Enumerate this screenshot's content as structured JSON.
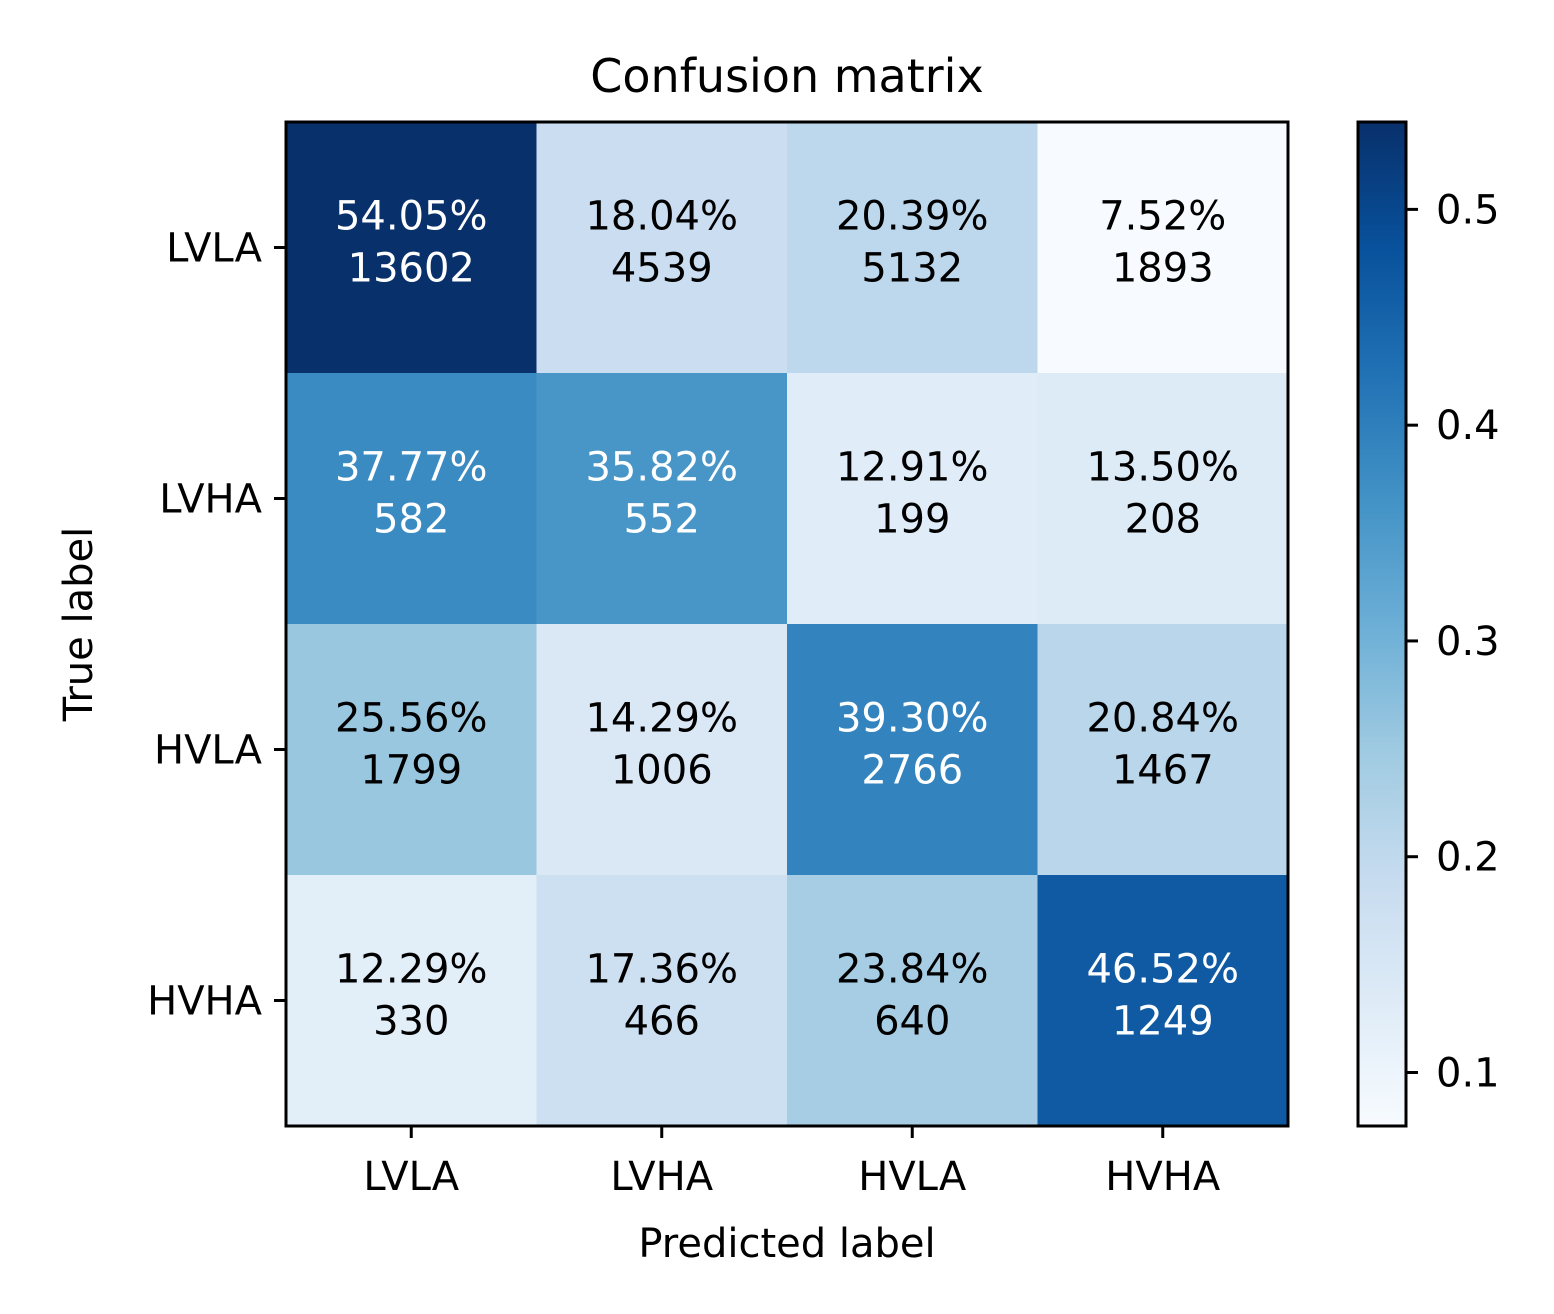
{
  "chart_data": {
    "type": "heatmap",
    "title": "Confusion matrix",
    "xlabel": "Predicted label",
    "ylabel": "True label",
    "x_categories": [
      "LVLA",
      "LVHA",
      "HVLA",
      "HVHA"
    ],
    "y_categories": [
      "LVLA",
      "LVHA",
      "HVLA",
      "HVHA"
    ],
    "percent_labels": [
      [
        "54.05%",
        "18.04%",
        "20.39%",
        "7.52%"
      ],
      [
        "37.77%",
        "35.82%",
        "12.91%",
        "13.50%"
      ],
      [
        "25.56%",
        "14.29%",
        "39.30%",
        "20.84%"
      ],
      [
        "12.29%",
        "17.36%",
        "23.84%",
        "46.52%"
      ]
    ],
    "values": [
      [
        0.5405,
        0.1804,
        0.2039,
        0.0752
      ],
      [
        0.3777,
        0.3582,
        0.1291,
        0.135
      ],
      [
        0.2556,
        0.1429,
        0.393,
        0.2084
      ],
      [
        0.1229,
        0.1736,
        0.2384,
        0.4652
      ]
    ],
    "counts": [
      [
        13602,
        4539,
        5132,
        1893
      ],
      [
        582,
        552,
        199,
        208
      ],
      [
        1799,
        1006,
        2766,
        1467
      ],
      [
        330,
        466,
        640,
        1249
      ]
    ],
    "colorbar": {
      "colormap": "Blues",
      "range": [
        0.0752,
        0.5405
      ],
      "ticks": [
        0.1,
        0.2,
        0.3,
        0.4,
        0.5
      ],
      "tick_labels": [
        "0.1",
        "0.2",
        "0.3",
        "0.4",
        "0.5"
      ]
    },
    "grid": false
  }
}
